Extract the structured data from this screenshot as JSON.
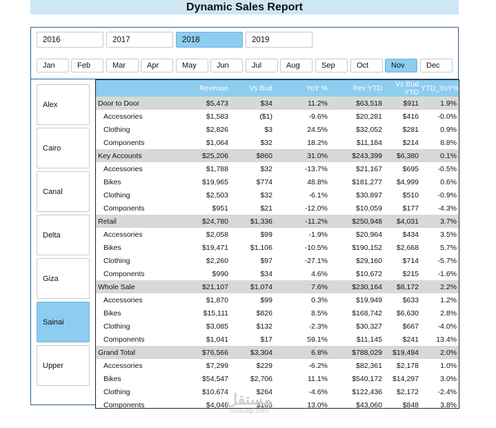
{
  "title": "Dynamic Sales Report",
  "years": [
    {
      "label": "2016",
      "selected": false
    },
    {
      "label": "2017",
      "selected": false
    },
    {
      "label": "2018",
      "selected": true
    },
    {
      "label": "2019",
      "selected": false
    }
  ],
  "months": [
    {
      "label": "Jan",
      "selected": false
    },
    {
      "label": "Feb",
      "selected": false
    },
    {
      "label": "Mar",
      "selected": false
    },
    {
      "label": "Apr",
      "selected": false
    },
    {
      "label": "May",
      "selected": false
    },
    {
      "label": "Jun",
      "selected": false
    },
    {
      "label": "Jul",
      "selected": false
    },
    {
      "label": "Aug",
      "selected": false
    },
    {
      "label": "Sep",
      "selected": false
    },
    {
      "label": "Oct",
      "selected": false
    },
    {
      "label": "Nov",
      "selected": true
    },
    {
      "label": "Dec",
      "selected": false
    }
  ],
  "regions": [
    {
      "label": "Alex",
      "selected": false
    },
    {
      "label": "Cairo",
      "selected": false
    },
    {
      "label": "Canal",
      "selected": false
    },
    {
      "label": "Delta",
      "selected": false
    },
    {
      "label": "Giza",
      "selected": false
    },
    {
      "label": "Sainai",
      "selected": true
    },
    {
      "label": "Upper",
      "selected": false
    }
  ],
  "table": {
    "headers": [
      "",
      "Revenue",
      "Vs Bud",
      "YoY %",
      "Rev YTD",
      "Vs Bud YTD",
      "YTD_YoY%"
    ],
    "rows": [
      {
        "type": "group",
        "cells": [
          "Door to Door",
          "$5,473",
          "$34",
          "11.2%",
          "$63,518",
          "$911",
          "1.9%"
        ]
      },
      {
        "type": "child",
        "cells": [
          "Accessories",
          "$1,583",
          "($1)",
          "-9.6%",
          "$20,281",
          "$416",
          "-0.0%"
        ]
      },
      {
        "type": "child",
        "cells": [
          "Clothing",
          "$2,826",
          "$3",
          "24.5%",
          "$32,052",
          "$281",
          "0.9%"
        ]
      },
      {
        "type": "child",
        "cells": [
          "Components",
          "$1,064",
          "$32",
          "18.2%",
          "$11,184",
          "$214",
          "8.8%"
        ]
      },
      {
        "type": "group",
        "cells": [
          "Key Accounts",
          "$25,206",
          "$860",
          "31.0%",
          "$243,399",
          "$6,380",
          "0.1%"
        ]
      },
      {
        "type": "child",
        "cells": [
          "Accessories",
          "$1,788",
          "$32",
          "-13.7%",
          "$21,167",
          "$695",
          "-0.5%"
        ]
      },
      {
        "type": "child",
        "cells": [
          "Bikes",
          "$19,965",
          "$774",
          "48.8%",
          "$181,277",
          "$4,999",
          "0.6%"
        ]
      },
      {
        "type": "child",
        "cells": [
          "Clothing",
          "$2,503",
          "$32",
          "-6.1%",
          "$30,897",
          "$510",
          "-0.9%"
        ]
      },
      {
        "type": "child",
        "cells": [
          "Components",
          "$951",
          "$21",
          "-12.0%",
          "$10,059",
          "$177",
          "-4.3%"
        ]
      },
      {
        "type": "group",
        "cells": [
          "Retail",
          "$24,780",
          "$1,336",
          "-11.2%",
          "$250,948",
          "$4,031",
          "3.7%"
        ]
      },
      {
        "type": "child",
        "cells": [
          "Accessories",
          "$2,058",
          "$99",
          "-1.9%",
          "$20,964",
          "$434",
          "3.5%"
        ]
      },
      {
        "type": "child",
        "cells": [
          "Bikes",
          "$19,471",
          "$1,106",
          "-10.5%",
          "$190,152",
          "$2,668",
          "5.7%"
        ]
      },
      {
        "type": "child",
        "cells": [
          "Clothing",
          "$2,260",
          "$97",
          "-27.1%",
          "$29,160",
          "$714",
          "-5.7%"
        ]
      },
      {
        "type": "child",
        "cells": [
          "Components",
          "$990",
          "$34",
          "4.6%",
          "$10,672",
          "$215",
          "-1.6%"
        ]
      },
      {
        "type": "group",
        "cells": [
          "Whole Sale",
          "$21,107",
          "$1,074",
          "7.6%",
          "$230,164",
          "$8,172",
          "2.2%"
        ]
      },
      {
        "type": "child",
        "cells": [
          "Accessories",
          "$1,870",
          "$99",
          "0.3%",
          "$19,949",
          "$633",
          "1.2%"
        ]
      },
      {
        "type": "child",
        "cells": [
          "Bikes",
          "$15,111",
          "$826",
          "8.5%",
          "$168,742",
          "$6,630",
          "2.8%"
        ]
      },
      {
        "type": "child",
        "cells": [
          "Clothing",
          "$3,085",
          "$132",
          "-2.3%",
          "$30,327",
          "$667",
          "-4.0%"
        ]
      },
      {
        "type": "child",
        "cells": [
          "Components",
          "$1,041",
          "$17",
          "59.1%",
          "$11,145",
          "$241",
          "13.4%"
        ]
      },
      {
        "type": "group",
        "cells": [
          "Grand Total",
          "$76,566",
          "$3,304",
          "6.8%",
          "$788,029",
          "$19,494",
          "2.0%"
        ]
      },
      {
        "type": "child",
        "cells": [
          "Accessories",
          "$7,299",
          "$229",
          "-6.2%",
          "$82,361",
          "$2,178",
          "1.0%"
        ]
      },
      {
        "type": "child",
        "cells": [
          "Bikes",
          "$54,547",
          "$2,706",
          "11.1%",
          "$540,172",
          "$14,297",
          "3.0%"
        ]
      },
      {
        "type": "child",
        "cells": [
          "Clothing",
          "$10,674",
          "$264",
          "-4.6%",
          "$122,436",
          "$2,172",
          "-2.4%"
        ]
      },
      {
        "type": "child",
        "cells": [
          "Components",
          "$4,046",
          "$105",
          "13.0%",
          "$43,060",
          "$848",
          "3.8%"
        ]
      }
    ]
  },
  "watermark": {
    "arabic": "مستقل",
    "latin": "mostaql.com"
  }
}
